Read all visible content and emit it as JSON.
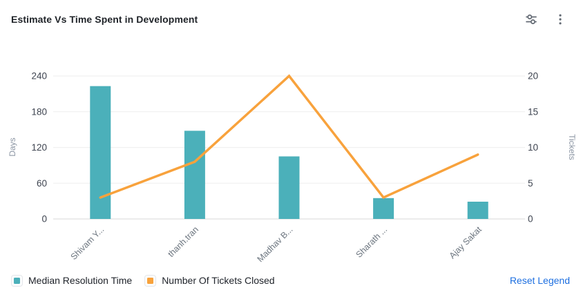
{
  "header": {
    "title": "Estimate Vs Time Spent in Development",
    "icons": [
      "chart-settings-sliders-icon",
      "more-options-kebab-icon"
    ]
  },
  "chart_data": {
    "type": "bar",
    "subtype": "combo-bar-line",
    "title": "Estimate Vs Time Spent in Development",
    "categories": [
      "Shivam Y...",
      "thanh.tran",
      "Madhav B...",
      "Sharath ...",
      "Ajay Sakat"
    ],
    "series": [
      {
        "name": "Median Resolution Time",
        "type": "bar",
        "axis": "left",
        "color": "#4bb0ba",
        "values": [
          223,
          148,
          105,
          35,
          29
        ]
      },
      {
        "name": "Number Of Tickets Closed",
        "type": "line",
        "axis": "right",
        "color": "#f8a23c",
        "values": [
          3,
          8,
          20,
          3,
          9
        ]
      }
    ],
    "left_axis": {
      "label": "Days",
      "ticks": [
        0,
        60,
        120,
        180,
        240
      ],
      "ylim": [
        0,
        240
      ]
    },
    "right_axis": {
      "label": "Tickets",
      "ticks": [
        0,
        5,
        10,
        15,
        20
      ],
      "ylim": [
        0,
        20
      ]
    },
    "grid": true,
    "legend_position": "bottom",
    "colors": {
      "gridline": "#f0f0f0",
      "baseline": "#e6e6e6",
      "tick_label": "#3e4450",
      "axis_name": "#8b95a3",
      "category_label": "#6c757f"
    }
  },
  "footer": {
    "legend": [
      {
        "label": "Median Resolution Time",
        "color": "#4bb0ba"
      },
      {
        "label": "Number Of Tickets Closed",
        "color": "#f8a23c"
      }
    ],
    "reset_label": "Reset Legend",
    "reset_color": "#1d6fe0"
  }
}
